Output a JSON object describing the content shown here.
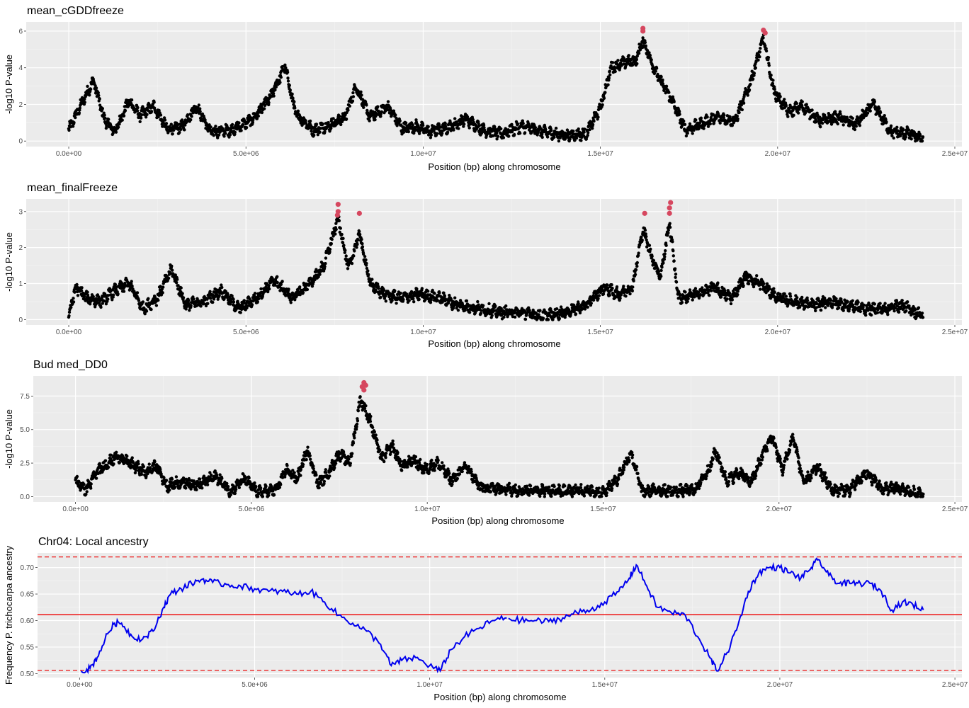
{
  "chart_data": [
    {
      "type": "scatter",
      "title": "mean_cGDDfreeze",
      "xlabel": "Position (bp) along chromosome",
      "ylabel": "-log10 P-value",
      "xlim": [
        -1200000,
        25200000
      ],
      "ylim": [
        -0.3,
        6.5
      ],
      "x_ticks": [
        "0.0e+00",
        "5.0e+06",
        "1.0e+07",
        "1.5e+07",
        "2.0e+07",
        "2.5e+07"
      ],
      "y_ticks": [
        "0",
        "2",
        "4",
        "6"
      ],
      "x_tick_values": [
        0,
        5000000,
        10000000,
        15000000,
        20000000,
        25000000
      ],
      "y_tick_values": [
        0,
        2,
        4,
        6
      ],
      "point_color": "#000000",
      "highlight_color": "#d6475f",
      "profile": [
        {
          "x": 0,
          "y": 0.6
        },
        {
          "x": 400000,
          "y": 2.2
        },
        {
          "x": 700000,
          "y": 3.3
        },
        {
          "x": 1000000,
          "y": 1.2
        },
        {
          "x": 1300000,
          "y": 0.5
        },
        {
          "x": 1700000,
          "y": 2.2
        },
        {
          "x": 2000000,
          "y": 1.4
        },
        {
          "x": 2400000,
          "y": 1.9
        },
        {
          "x": 2800000,
          "y": 0.6
        },
        {
          "x": 3200000,
          "y": 0.8
        },
        {
          "x": 3600000,
          "y": 1.9
        },
        {
          "x": 4000000,
          "y": 0.5
        },
        {
          "x": 4600000,
          "y": 0.6
        },
        {
          "x": 5200000,
          "y": 1.2
        },
        {
          "x": 5700000,
          "y": 2.4
        },
        {
          "x": 6100000,
          "y": 4.1
        },
        {
          "x": 6400000,
          "y": 1.5
        },
        {
          "x": 6900000,
          "y": 0.6
        },
        {
          "x": 7400000,
          "y": 0.9
        },
        {
          "x": 7800000,
          "y": 1.3
        },
        {
          "x": 8100000,
          "y": 3.0
        },
        {
          "x": 8500000,
          "y": 1.3
        },
        {
          "x": 9000000,
          "y": 1.9
        },
        {
          "x": 9400000,
          "y": 0.7
        },
        {
          "x": 9800000,
          "y": 0.8
        },
        {
          "x": 10200000,
          "y": 0.5
        },
        {
          "x": 10800000,
          "y": 0.8
        },
        {
          "x": 11200000,
          "y": 1.2
        },
        {
          "x": 11700000,
          "y": 0.6
        },
        {
          "x": 12200000,
          "y": 0.4
        },
        {
          "x": 12800000,
          "y": 0.8
        },
        {
          "x": 13400000,
          "y": 0.5
        },
        {
          "x": 14000000,
          "y": 0.3
        },
        {
          "x": 14600000,
          "y": 0.4
        },
        {
          "x": 15000000,
          "y": 1.8
        },
        {
          "x": 15300000,
          "y": 4.0
        },
        {
          "x": 15700000,
          "y": 4.3
        },
        {
          "x": 16000000,
          "y": 4.4
        },
        {
          "x": 16200000,
          "y": 5.5
        },
        {
          "x": 16600000,
          "y": 3.6
        },
        {
          "x": 17000000,
          "y": 2.3
        },
        {
          "x": 17400000,
          "y": 0.6
        },
        {
          "x": 17800000,
          "y": 0.9
        },
        {
          "x": 18300000,
          "y": 1.3
        },
        {
          "x": 18800000,
          "y": 1.1
        },
        {
          "x": 19200000,
          "y": 3.0
        },
        {
          "x": 19600000,
          "y": 5.6
        },
        {
          "x": 19900000,
          "y": 2.7
        },
        {
          "x": 20300000,
          "y": 1.6
        },
        {
          "x": 20700000,
          "y": 1.9
        },
        {
          "x": 21200000,
          "y": 1.1
        },
        {
          "x": 21700000,
          "y": 1.3
        },
        {
          "x": 22200000,
          "y": 0.9
        },
        {
          "x": 22700000,
          "y": 2.0
        },
        {
          "x": 23200000,
          "y": 0.5
        },
        {
          "x": 23700000,
          "y": 0.4
        },
        {
          "x": 24100000,
          "y": 0.1
        }
      ],
      "highlights": [
        {
          "x": 16200000,
          "y": 6.15
        },
        {
          "x": 16200000,
          "y": 6.0
        },
        {
          "x": 19600000,
          "y": 6.05
        },
        {
          "x": 19650000,
          "y": 5.9
        }
      ]
    },
    {
      "type": "scatter",
      "title": "mean_finalFreeze",
      "xlabel": "Position (bp) along chromosome",
      "ylabel": "-log10 P-value",
      "xlim": [
        -1200000,
        25200000
      ],
      "ylim": [
        -0.15,
        3.35
      ],
      "x_ticks": [
        "0.0e+00",
        "5.0e+06",
        "1.0e+07",
        "1.5e+07",
        "2.0e+07",
        "2.5e+07"
      ],
      "y_ticks": [
        "0",
        "1",
        "2",
        "3"
      ],
      "x_tick_values": [
        0,
        5000000,
        10000000,
        15000000,
        20000000,
        25000000
      ],
      "y_tick_values": [
        0,
        1,
        2,
        3
      ],
      "point_color": "#000000",
      "highlight_color": "#d6475f",
      "profile": [
        {
          "x": 0,
          "y": 0.1
        },
        {
          "x": 200000,
          "y": 0.9
        },
        {
          "x": 500000,
          "y": 0.6
        },
        {
          "x": 900000,
          "y": 0.5
        },
        {
          "x": 1300000,
          "y": 0.8
        },
        {
          "x": 1700000,
          "y": 1.0
        },
        {
          "x": 2100000,
          "y": 0.3
        },
        {
          "x": 2500000,
          "y": 0.6
        },
        {
          "x": 2900000,
          "y": 1.4
        },
        {
          "x": 3300000,
          "y": 0.4
        },
        {
          "x": 3800000,
          "y": 0.5
        },
        {
          "x": 4300000,
          "y": 0.8
        },
        {
          "x": 4800000,
          "y": 0.3
        },
        {
          "x": 5300000,
          "y": 0.6
        },
        {
          "x": 5800000,
          "y": 1.1
        },
        {
          "x": 6300000,
          "y": 0.6
        },
        {
          "x": 6800000,
          "y": 1.0
        },
        {
          "x": 7200000,
          "y": 1.5
        },
        {
          "x": 7600000,
          "y": 2.8
        },
        {
          "x": 7900000,
          "y": 1.4
        },
        {
          "x": 8200000,
          "y": 2.4
        },
        {
          "x": 8500000,
          "y": 1.0
        },
        {
          "x": 8900000,
          "y": 0.7
        },
        {
          "x": 9400000,
          "y": 0.6
        },
        {
          "x": 9900000,
          "y": 0.7
        },
        {
          "x": 10500000,
          "y": 0.6
        },
        {
          "x": 11000000,
          "y": 0.4
        },
        {
          "x": 11600000,
          "y": 0.3
        },
        {
          "x": 12200000,
          "y": 0.2
        },
        {
          "x": 12800000,
          "y": 0.2
        },
        {
          "x": 13400000,
          "y": 0.1
        },
        {
          "x": 14000000,
          "y": 0.2
        },
        {
          "x": 14600000,
          "y": 0.4
        },
        {
          "x": 15100000,
          "y": 0.9
        },
        {
          "x": 15500000,
          "y": 0.7
        },
        {
          "x": 15900000,
          "y": 0.9
        },
        {
          "x": 16200000,
          "y": 2.5
        },
        {
          "x": 16500000,
          "y": 1.6
        },
        {
          "x": 16700000,
          "y": 1.2
        },
        {
          "x": 16950000,
          "y": 2.7
        },
        {
          "x": 17200000,
          "y": 0.6
        },
        {
          "x": 17700000,
          "y": 0.7
        },
        {
          "x": 18200000,
          "y": 0.9
        },
        {
          "x": 18700000,
          "y": 0.6
        },
        {
          "x": 19100000,
          "y": 1.2
        },
        {
          "x": 19500000,
          "y": 1.0
        },
        {
          "x": 20000000,
          "y": 0.6
        },
        {
          "x": 20500000,
          "y": 0.5
        },
        {
          "x": 21000000,
          "y": 0.4
        },
        {
          "x": 21500000,
          "y": 0.5
        },
        {
          "x": 22000000,
          "y": 0.4
        },
        {
          "x": 22500000,
          "y": 0.3
        },
        {
          "x": 23000000,
          "y": 0.3
        },
        {
          "x": 23500000,
          "y": 0.4
        },
        {
          "x": 24100000,
          "y": 0.1
        }
      ],
      "highlights": [
        {
          "x": 7600000,
          "y": 3.2
        },
        {
          "x": 7600000,
          "y": 3.0
        },
        {
          "x": 7580000,
          "y": 2.9
        },
        {
          "x": 8200000,
          "y": 2.95
        },
        {
          "x": 16250000,
          "y": 2.95
        },
        {
          "x": 16980000,
          "y": 3.25
        },
        {
          "x": 16950000,
          "y": 3.1
        },
        {
          "x": 16950000,
          "y": 2.95
        }
      ]
    },
    {
      "type": "scatter",
      "title": "Bud med_DD0",
      "xlabel": "Position (bp) along chromosome",
      "ylabel": "-log10 P-value",
      "xlim": [
        -1200000,
        25200000
      ],
      "ylim": [
        -0.4,
        9.0
      ],
      "x_ticks": [
        "0.0e+00",
        "5.0e+06",
        "1.0e+07",
        "1.5e+07",
        "2.0e+07",
        "2.5e+07"
      ],
      "y_ticks": [
        "0.0",
        "2.5",
        "5.0",
        "7.5"
      ],
      "x_tick_values": [
        0,
        5000000,
        10000000,
        15000000,
        20000000,
        25000000
      ],
      "y_tick_values": [
        0,
        2.5,
        5.0,
        7.5
      ],
      "point_color": "#000000",
      "highlight_color": "#d6475f",
      "profile": [
        {
          "x": 0,
          "y": 1.2
        },
        {
          "x": 300000,
          "y": 0.5
        },
        {
          "x": 600000,
          "y": 1.8
        },
        {
          "x": 900000,
          "y": 2.5
        },
        {
          "x": 1200000,
          "y": 3.0
        },
        {
          "x": 1600000,
          "y": 2.4
        },
        {
          "x": 2000000,
          "y": 1.8
        },
        {
          "x": 2300000,
          "y": 2.3
        },
        {
          "x": 2600000,
          "y": 0.8
        },
        {
          "x": 3000000,
          "y": 1.1
        },
        {
          "x": 3500000,
          "y": 0.9
        },
        {
          "x": 4000000,
          "y": 1.5
        },
        {
          "x": 4400000,
          "y": 0.4
        },
        {
          "x": 4800000,
          "y": 1.3
        },
        {
          "x": 5200000,
          "y": 0.3
        },
        {
          "x": 5700000,
          "y": 0.5
        },
        {
          "x": 6000000,
          "y": 2.0
        },
        {
          "x": 6300000,
          "y": 1.3
        },
        {
          "x": 6600000,
          "y": 3.5
        },
        {
          "x": 6900000,
          "y": 0.9
        },
        {
          "x": 7200000,
          "y": 1.8
        },
        {
          "x": 7500000,
          "y": 3.2
        },
        {
          "x": 7800000,
          "y": 2.5
        },
        {
          "x": 8100000,
          "y": 7.3
        },
        {
          "x": 8400000,
          "y": 5.5
        },
        {
          "x": 8700000,
          "y": 2.8
        },
        {
          "x": 9000000,
          "y": 3.8
        },
        {
          "x": 9300000,
          "y": 2.2
        },
        {
          "x": 9600000,
          "y": 2.8
        },
        {
          "x": 9900000,
          "y": 2.0
        },
        {
          "x": 10300000,
          "y": 2.5
        },
        {
          "x": 10700000,
          "y": 1.2
        },
        {
          "x": 11100000,
          "y": 2.3
        },
        {
          "x": 11500000,
          "y": 0.7
        },
        {
          "x": 12000000,
          "y": 0.6
        },
        {
          "x": 12600000,
          "y": 0.5
        },
        {
          "x": 13200000,
          "y": 0.5
        },
        {
          "x": 13800000,
          "y": 0.4
        },
        {
          "x": 14400000,
          "y": 0.5
        },
        {
          "x": 15000000,
          "y": 0.3
        },
        {
          "x": 15400000,
          "y": 1.3
        },
        {
          "x": 15800000,
          "y": 3.3
        },
        {
          "x": 16100000,
          "y": 0.4
        },
        {
          "x": 16600000,
          "y": 0.5
        },
        {
          "x": 17100000,
          "y": 0.4
        },
        {
          "x": 17600000,
          "y": 0.5
        },
        {
          "x": 18000000,
          "y": 2.0
        },
        {
          "x": 18200000,
          "y": 3.4
        },
        {
          "x": 18500000,
          "y": 1.2
        },
        {
          "x": 18900000,
          "y": 1.8
        },
        {
          "x": 19200000,
          "y": 1.0
        },
        {
          "x": 19600000,
          "y": 3.5
        },
        {
          "x": 19800000,
          "y": 4.5
        },
        {
          "x": 20100000,
          "y": 2.0
        },
        {
          "x": 20400000,
          "y": 4.5
        },
        {
          "x": 20700000,
          "y": 1.0
        },
        {
          "x": 21100000,
          "y": 2.2
        },
        {
          "x": 21500000,
          "y": 0.5
        },
        {
          "x": 22000000,
          "y": 0.5
        },
        {
          "x": 22500000,
          "y": 1.8
        },
        {
          "x": 22900000,
          "y": 0.6
        },
        {
          "x": 23400000,
          "y": 0.6
        },
        {
          "x": 24100000,
          "y": 0.1
        }
      ],
      "highlights": [
        {
          "x": 8200000,
          "y": 8.5
        },
        {
          "x": 8150000,
          "y": 8.2
        },
        {
          "x": 8250000,
          "y": 8.3
        },
        {
          "x": 8200000,
          "y": 7.95
        }
      ]
    },
    {
      "type": "line",
      "title": "Chr04: Local ancestry",
      "xlabel": "Position (bp) along chromosome",
      "ylabel": "Frequency P. trichocarpa ancestry",
      "xlim": [
        -1200000,
        25200000
      ],
      "ylim": [
        0.4925,
        0.7275
      ],
      "x_ticks": [
        "0.0e+00",
        "5.0e+06",
        "1.0e+07",
        "1.5e+07",
        "2.0e+07",
        "2.5e+07"
      ],
      "y_ticks": [
        "0.50",
        "0.55",
        "0.60",
        "0.65",
        "0.70"
      ],
      "x_tick_values": [
        0,
        5000000,
        10000000,
        15000000,
        20000000,
        25000000
      ],
      "y_tick_values": [
        0.5,
        0.55,
        0.6,
        0.65,
        0.7
      ],
      "line_color": "#0000ee",
      "reference_color": "#ee1111",
      "mean_line": 0.611,
      "upper_threshold": 0.72,
      "lower_threshold": 0.506,
      "series": [
        {
          "x": [
            50000,
            300000,
            500000,
            800000,
            1000000,
            1200000,
            1500000,
            1800000,
            2100000,
            2400000,
            2600000,
            2900000,
            3200000,
            3500000,
            3800000,
            4200000,
            4600000,
            5000000,
            5400000,
            5800000,
            6200000,
            6600000,
            7000000,
            7400000,
            7800000,
            8200000,
            8600000,
            8900000,
            9200000,
            9600000,
            10000000,
            10300000,
            10600000,
            11000000,
            11400000,
            11800000,
            12200000,
            12600000,
            13000000,
            13400000,
            13800000,
            14200000,
            14600000,
            15000000,
            15400000,
            15700000,
            15900000,
            16200000,
            16500000,
            16900000,
            17300000,
            17700000,
            18000000,
            18200000,
            18500000,
            18800000,
            19100000,
            19400000,
            19700000,
            20000000,
            20300000,
            20600000,
            20900000,
            21100000,
            21400000,
            21700000,
            22000000,
            22300000,
            22600000,
            22900000,
            23200000,
            23500000,
            23800000,
            24100000
          ],
          "y": [
            0.505,
            0.51,
            0.53,
            0.575,
            0.595,
            0.595,
            0.57,
            0.565,
            0.58,
            0.625,
            0.65,
            0.66,
            0.67,
            0.678,
            0.672,
            0.668,
            0.665,
            0.66,
            0.655,
            0.655,
            0.65,
            0.655,
            0.635,
            0.61,
            0.595,
            0.58,
            0.555,
            0.515,
            0.525,
            0.53,
            0.515,
            0.505,
            0.545,
            0.57,
            0.585,
            0.6,
            0.605,
            0.6,
            0.6,
            0.598,
            0.605,
            0.615,
            0.62,
            0.635,
            0.655,
            0.68,
            0.705,
            0.665,
            0.625,
            0.615,
            0.61,
            0.565,
            0.53,
            0.505,
            0.54,
            0.59,
            0.655,
            0.69,
            0.7,
            0.7,
            0.69,
            0.68,
            0.7,
            0.715,
            0.685,
            0.67,
            0.67,
            0.67,
            0.67,
            0.655,
            0.62,
            0.635,
            0.63,
            0.62
          ]
        }
      ],
      "gaps_after_x": [
        12200000
      ]
    }
  ]
}
